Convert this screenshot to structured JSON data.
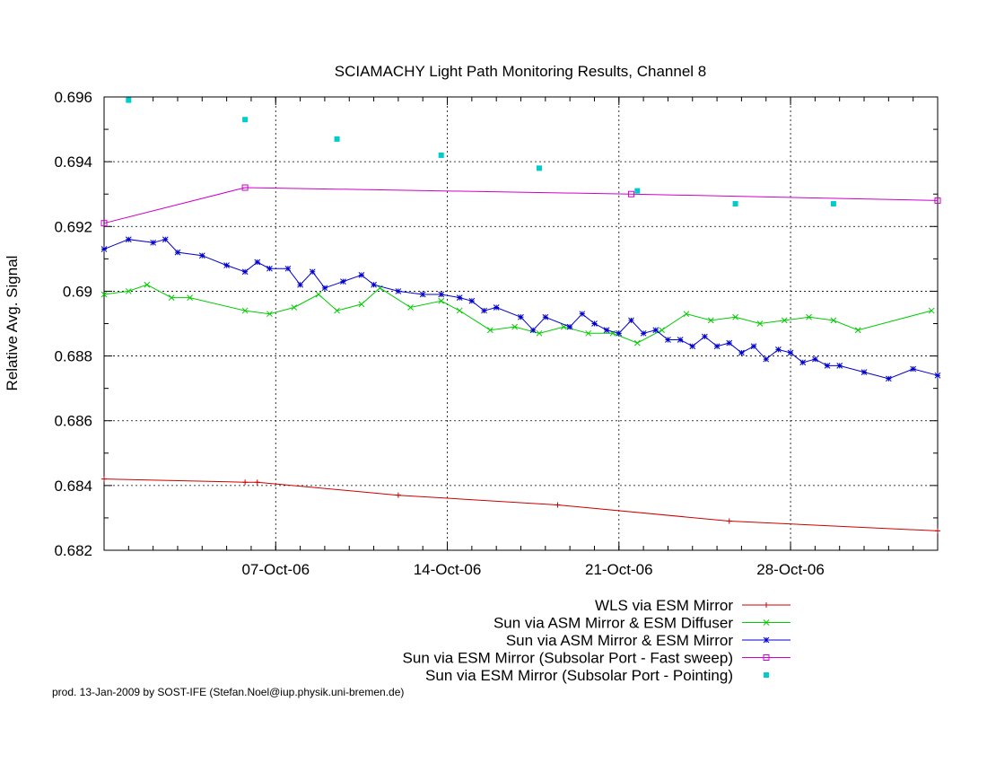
{
  "chart_data": {
    "type": "line",
    "title": "SCIAMACHY Light Path Monitoring Results, Channel 8",
    "xlabel": "",
    "ylabel": "Relative Avg. Signal",
    "xlim": [
      "2006-09-30",
      "2006-11-03"
    ],
    "ylim": [
      0.682,
      0.696
    ],
    "yticks": [
      0.682,
      0.684,
      0.686,
      0.688,
      0.69,
      0.692,
      0.694,
      0.696
    ],
    "ytick_labels": [
      "0.682",
      "0.684",
      "0.686",
      "0.688",
      "0.69",
      "0.692",
      "0.694",
      "0.696"
    ],
    "xticks": [
      "2006-10-07",
      "2006-10-14",
      "2006-10-21",
      "2006-10-28"
    ],
    "xtick_labels": [
      "07-Oct-06",
      "14-Oct-06",
      "21-Oct-06",
      "28-Oct-06"
    ],
    "grid": true,
    "legend_position": "bottom-right",
    "series": [
      {
        "name": "WLS via ESM Mirror",
        "color": "#cc0000",
        "marker": "plus",
        "points": [
          [
            "2006-09-30",
            0.6842
          ],
          [
            "2006-10-05 18:00",
            0.6841
          ],
          [
            "2006-10-06 06:00",
            0.6841
          ],
          [
            "2006-10-12",
            0.6837
          ],
          [
            "2006-10-18 12:00",
            0.6834
          ],
          [
            "2006-10-25 12:00",
            0.6829
          ],
          [
            "2006-11-03",
            0.6826
          ]
        ]
      },
      {
        "name": "Sun via ASM Mirror & ESM Diffuser",
        "color": "#00cc00",
        "marker": "x",
        "points": [
          [
            "2006-09-30",
            0.6899
          ],
          [
            "2006-10-01",
            0.69
          ],
          [
            "2006-10-01 18:00",
            0.6902
          ],
          [
            "2006-10-02 18:00",
            0.6898
          ],
          [
            "2006-10-03 12:00",
            0.6898
          ],
          [
            "2006-10-05 18:00",
            0.6894
          ],
          [
            "2006-10-06 18:00",
            0.6893
          ],
          [
            "2006-10-07 18:00",
            0.6895
          ],
          [
            "2006-10-08 18:00",
            0.6899
          ],
          [
            "2006-10-09 12:00",
            0.6894
          ],
          [
            "2006-10-10 12:00",
            0.6896
          ],
          [
            "2006-10-11 06:00",
            0.6901
          ],
          [
            "2006-10-12 12:00",
            0.6895
          ],
          [
            "2006-10-13 18:00",
            0.6897
          ],
          [
            "2006-10-14 12:00",
            0.6894
          ],
          [
            "2006-10-15 18:00",
            0.6888
          ],
          [
            "2006-10-16 18:00",
            0.6889
          ],
          [
            "2006-10-17 18:00",
            0.6887
          ],
          [
            "2006-10-18 18:00",
            0.6889
          ],
          [
            "2006-10-19 18:00",
            0.6887
          ],
          [
            "2006-10-20 18:00",
            0.6887
          ],
          [
            "2006-10-21 18:00",
            0.6884
          ],
          [
            "2006-10-22 18:00",
            0.6888
          ],
          [
            "2006-10-23 18:00",
            0.6893
          ],
          [
            "2006-10-24 18:00",
            0.6891
          ],
          [
            "2006-10-25 18:00",
            0.6892
          ],
          [
            "2006-10-26 18:00",
            0.689
          ],
          [
            "2006-10-27 18:00",
            0.6891
          ],
          [
            "2006-10-28 18:00",
            0.6892
          ],
          [
            "2006-10-29 18:00",
            0.6891
          ],
          [
            "2006-10-30 18:00",
            0.6888
          ],
          [
            "2006-11-02 18:00",
            0.6894
          ]
        ]
      },
      {
        "name": "Sun via ASM Mirror & ESM Mirror",
        "color": "#0000cc",
        "marker": "star",
        "points": [
          [
            "2006-09-30",
            0.6913
          ],
          [
            "2006-10-01",
            0.6916
          ],
          [
            "2006-10-02",
            0.6915
          ],
          [
            "2006-10-02 12:00",
            0.6916
          ],
          [
            "2006-10-03",
            0.6912
          ],
          [
            "2006-10-04",
            0.6911
          ],
          [
            "2006-10-05",
            0.6908
          ],
          [
            "2006-10-05 18:00",
            0.6906
          ],
          [
            "2006-10-06 06:00",
            0.6909
          ],
          [
            "2006-10-06 18:00",
            0.6907
          ],
          [
            "2006-10-07 12:00",
            0.6907
          ],
          [
            "2006-10-08",
            0.6902
          ],
          [
            "2006-10-08 12:00",
            0.6906
          ],
          [
            "2006-10-09",
            0.6901
          ],
          [
            "2006-10-09 18:00",
            0.6903
          ],
          [
            "2006-10-10 12:00",
            0.6905
          ],
          [
            "2006-10-11",
            0.6902
          ],
          [
            "2006-10-12",
            0.69
          ],
          [
            "2006-10-13",
            0.6899
          ],
          [
            "2006-10-13 18:00",
            0.6899
          ],
          [
            "2006-10-14 12:00",
            0.6898
          ],
          [
            "2006-10-15",
            0.6897
          ],
          [
            "2006-10-15 12:00",
            0.6894
          ],
          [
            "2006-10-16",
            0.6895
          ],
          [
            "2006-10-17",
            0.6892
          ],
          [
            "2006-10-17 12:00",
            0.6888
          ],
          [
            "2006-10-18",
            0.6892
          ],
          [
            "2006-10-19",
            0.6889
          ],
          [
            "2006-10-19 12:00",
            0.6893
          ],
          [
            "2006-10-20",
            0.689
          ],
          [
            "2006-10-20 12:00",
            0.6888
          ],
          [
            "2006-10-21",
            0.6887
          ],
          [
            "2006-10-21 12:00",
            0.6891
          ],
          [
            "2006-10-22",
            0.6887
          ],
          [
            "2006-10-22 12:00",
            0.6888
          ],
          [
            "2006-10-23",
            0.6885
          ],
          [
            "2006-10-23 12:00",
            0.6885
          ],
          [
            "2006-10-24",
            0.6883
          ],
          [
            "2006-10-24 12:00",
            0.6886
          ],
          [
            "2006-10-25",
            0.6883
          ],
          [
            "2006-10-25 12:00",
            0.6884
          ],
          [
            "2006-10-26",
            0.6881
          ],
          [
            "2006-10-26 12:00",
            0.6883
          ],
          [
            "2006-10-27",
            0.6879
          ],
          [
            "2006-10-27 12:00",
            0.6882
          ],
          [
            "2006-10-28",
            0.6881
          ],
          [
            "2006-10-28 12:00",
            0.6878
          ],
          [
            "2006-10-29",
            0.6879
          ],
          [
            "2006-10-29 12:00",
            0.6877
          ],
          [
            "2006-10-30",
            0.6877
          ],
          [
            "2006-10-31",
            0.6875
          ],
          [
            "2006-11-01",
            0.6873
          ],
          [
            "2006-11-02",
            0.6876
          ],
          [
            "2006-11-03",
            0.6874
          ]
        ]
      },
      {
        "name": "Sun via ESM Mirror (Subsolar Port - Fast sweep)",
        "color": "#cc00cc",
        "marker": "square",
        "points": [
          [
            "2006-09-30",
            0.6921
          ],
          [
            "2006-10-05 18:00",
            0.6932
          ],
          [
            "2006-10-21 12:00",
            0.693
          ],
          [
            "2006-11-03",
            0.6928
          ]
        ]
      },
      {
        "name": "Sun via ESM Mirror (Subsolar Port - Pointing)",
        "color": "#00cccc",
        "marker": "filled-square",
        "line": false,
        "points": [
          [
            "2006-10-01",
            0.6959
          ],
          [
            "2006-10-05 18:00",
            0.6953
          ],
          [
            "2006-10-09 12:00",
            0.6947
          ],
          [
            "2006-10-13 18:00",
            0.6942
          ],
          [
            "2006-10-17 18:00",
            0.6938
          ],
          [
            "2006-10-21 18:00",
            0.6931
          ],
          [
            "2006-10-25 18:00",
            0.6927
          ],
          [
            "2006-10-29 18:00",
            0.6927
          ]
        ]
      }
    ]
  },
  "footer": "prod. 13-Jan-2009 by SOST-IFE (Stefan.Noel@iup.physik.uni-bremen.de)"
}
